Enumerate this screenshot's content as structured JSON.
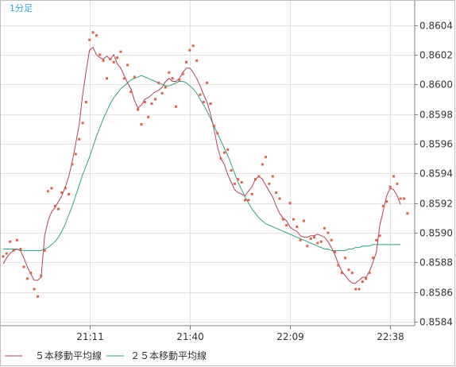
{
  "chart_data": {
    "type": "line",
    "timeframe_label": "1分足",
    "x_tick_labels": [
      "21:11",
      "21:40",
      "22:09",
      "22:38"
    ],
    "x_tick_index": [
      25,
      54,
      83,
      112
    ],
    "y_tick_labels": [
      "0.8604",
      "0.8602",
      "0.8600",
      "0.8598",
      "0.8596",
      "0.8594",
      "0.8592",
      "0.8590",
      "0.8588",
      "0.8586",
      "0.8584"
    ],
    "ylim": [
      0.85838,
      0.86054
    ],
    "grid": true,
    "colors": {
      "dots": "#d9634b",
      "ma5": "#b0405a",
      "ma25": "#2ea37c",
      "grid": "#e2e2e2",
      "axis": "#808080"
    },
    "price_dots": [
      0.85884,
      0.85886,
      0.85894,
      0.85888,
      0.85895,
      0.85889,
      0.85877,
      0.85869,
      0.85873,
      0.85862,
      0.85857,
      0.85871,
      0.85888,
      0.85928,
      0.8593,
      0.85918,
      0.85916,
      0.85927,
      0.8593,
      0.85926,
      0.85946,
      0.85953,
      0.85963,
      0.85974,
      0.85988,
      0.8603,
      0.86035,
      0.86033,
      0.8602,
      0.86016,
      0.86004,
      0.86017,
      0.86015,
      0.86018,
      0.86022,
      0.86004,
      0.86013,
      0.85995,
      0.86005,
      0.85983,
      0.85973,
      0.85988,
      0.85978,
      0.85987,
      0.8599,
      0.86001,
      0.85994,
      0.85998,
      0.86008,
      0.86004,
      0.85985,
      0.86003,
      0.86007,
      0.86015,
      0.86023,
      0.86026,
      0.86016,
      0.85993,
      0.85988,
      0.86001,
      0.85987,
      0.85972,
      0.85967,
      0.8595,
      0.85954,
      0.85956,
      0.85942,
      0.85933,
      0.85936,
      0.85934,
      0.85922,
      0.85922,
      0.85926,
      0.85936,
      0.85938,
      0.85946,
      0.85951,
      0.85933,
      0.85938,
      0.85927,
      0.85923,
      0.85909,
      0.85905,
      0.8592,
      0.85909,
      0.85904,
      0.85895,
      0.85908,
      0.85891,
      0.85896,
      0.85897,
      0.85893,
      0.85894,
      0.85903,
      0.859,
      0.85895,
      0.85887,
      0.85878,
      0.85873,
      0.85883,
      0.85875,
      0.85873,
      0.85862,
      0.85862,
      0.85867,
      0.85869,
      0.85873,
      0.85883,
      0.85895,
      0.85898,
      0.85918,
      0.85921,
      0.85931,
      0.85938,
      0.85933,
      0.85923,
      0.85923,
      0.85913
    ],
    "ma5": [
      0.85879,
      0.85883,
      0.85886,
      0.85888,
      0.85889,
      0.85888,
      0.85883,
      0.85877,
      0.85872,
      0.85868,
      0.85868,
      0.8587,
      0.85898,
      0.85908,
      0.85914,
      0.85917,
      0.85921,
      0.85925,
      0.85931,
      0.85938,
      0.85948,
      0.8596,
      0.85973,
      0.85993,
      0.86009,
      0.86023,
      0.86025,
      0.8602,
      0.86018,
      0.86017,
      0.86019,
      0.86017,
      0.8602,
      0.86014,
      0.86011,
      0.86006,
      0.86001,
      0.85997,
      0.85989,
      0.85984,
      0.85986,
      0.8599,
      0.85991,
      0.85993,
      0.85995,
      0.85996,
      0.85998,
      0.86002,
      0.86004,
      0.86002,
      0.86002,
      0.86004,
      0.86008,
      0.86011,
      0.86011,
      0.86008,
      0.86004,
      0.85999,
      0.85993,
      0.85988,
      0.8598,
      0.8597,
      0.85958,
      0.8595,
      0.85946,
      0.85939,
      0.85934,
      0.85929,
      0.85927,
      0.85926,
      0.85925,
      0.85928,
      0.85931,
      0.85936,
      0.85938,
      0.85936,
      0.85932,
      0.85928,
      0.85924,
      0.85918,
      0.85913,
      0.8591,
      0.85908,
      0.85904,
      0.85902,
      0.85901,
      0.85898,
      0.85897,
      0.85897,
      0.85898,
      0.85898,
      0.85899,
      0.85898,
      0.85897,
      0.85894,
      0.8589,
      0.85885,
      0.85879,
      0.85874,
      0.85871,
      0.85868,
      0.85866,
      0.85866,
      0.85868,
      0.8587,
      0.8587,
      0.85874,
      0.8588,
      0.85887,
      0.85905,
      0.85915,
      0.85925,
      0.8593,
      0.85929,
      0.85925,
      0.85919
    ],
    "ma25": [
      0.85889,
      0.85889,
      0.85889,
      0.85889,
      0.85889,
      0.85888,
      0.85888,
      0.85888,
      0.85888,
      0.85888,
      0.85888,
      0.85888,
      0.85889,
      0.8589,
      0.85892,
      0.85894,
      0.85897,
      0.85901,
      0.85906,
      0.85912,
      0.85918,
      0.85925,
      0.85932,
      0.85939,
      0.85945,
      0.85951,
      0.85958,
      0.85965,
      0.85971,
      0.85977,
      0.85982,
      0.85987,
      0.85991,
      0.85994,
      0.85997,
      0.85999,
      0.86001,
      0.86003,
      0.86004,
      0.86005,
      0.86006,
      0.86005,
      0.86004,
      0.86003,
      0.86002,
      0.86001,
      0.86,
      0.85999,
      0.85999,
      0.86,
      0.86001,
      0.86002,
      0.86002,
      0.86001,
      0.85999,
      0.85997,
      0.85994,
      0.8599,
      0.85986,
      0.85982,
      0.85977,
      0.85972,
      0.85967,
      0.85962,
      0.85957,
      0.85952,
      0.85946,
      0.8594,
      0.85934,
      0.85929,
      0.85924,
      0.8592,
      0.85916,
      0.85913,
      0.8591,
      0.85908,
      0.85906,
      0.85905,
      0.85904,
      0.85903,
      0.85902,
      0.85901,
      0.859,
      0.85899,
      0.85898,
      0.85897,
      0.85896,
      0.85895,
      0.85894,
      0.85893,
      0.85892,
      0.85891,
      0.8589,
      0.85889,
      0.85889,
      0.85888,
      0.85888,
      0.85888,
      0.85888,
      0.85888,
      0.85889,
      0.85889,
      0.8589,
      0.8589,
      0.85891,
      0.85891,
      0.85891,
      0.85892,
      0.85892,
      0.85892,
      0.85892,
      0.85892,
      0.85892,
      0.85892,
      0.85892,
      0.85892
    ],
    "legend": [
      {
        "label": "５本移動平均線",
        "color_key": "ma5"
      },
      {
        "label": "２５本移動平均線",
        "color_key": "ma25"
      }
    ],
    "legend_position": "bottom-left"
  }
}
